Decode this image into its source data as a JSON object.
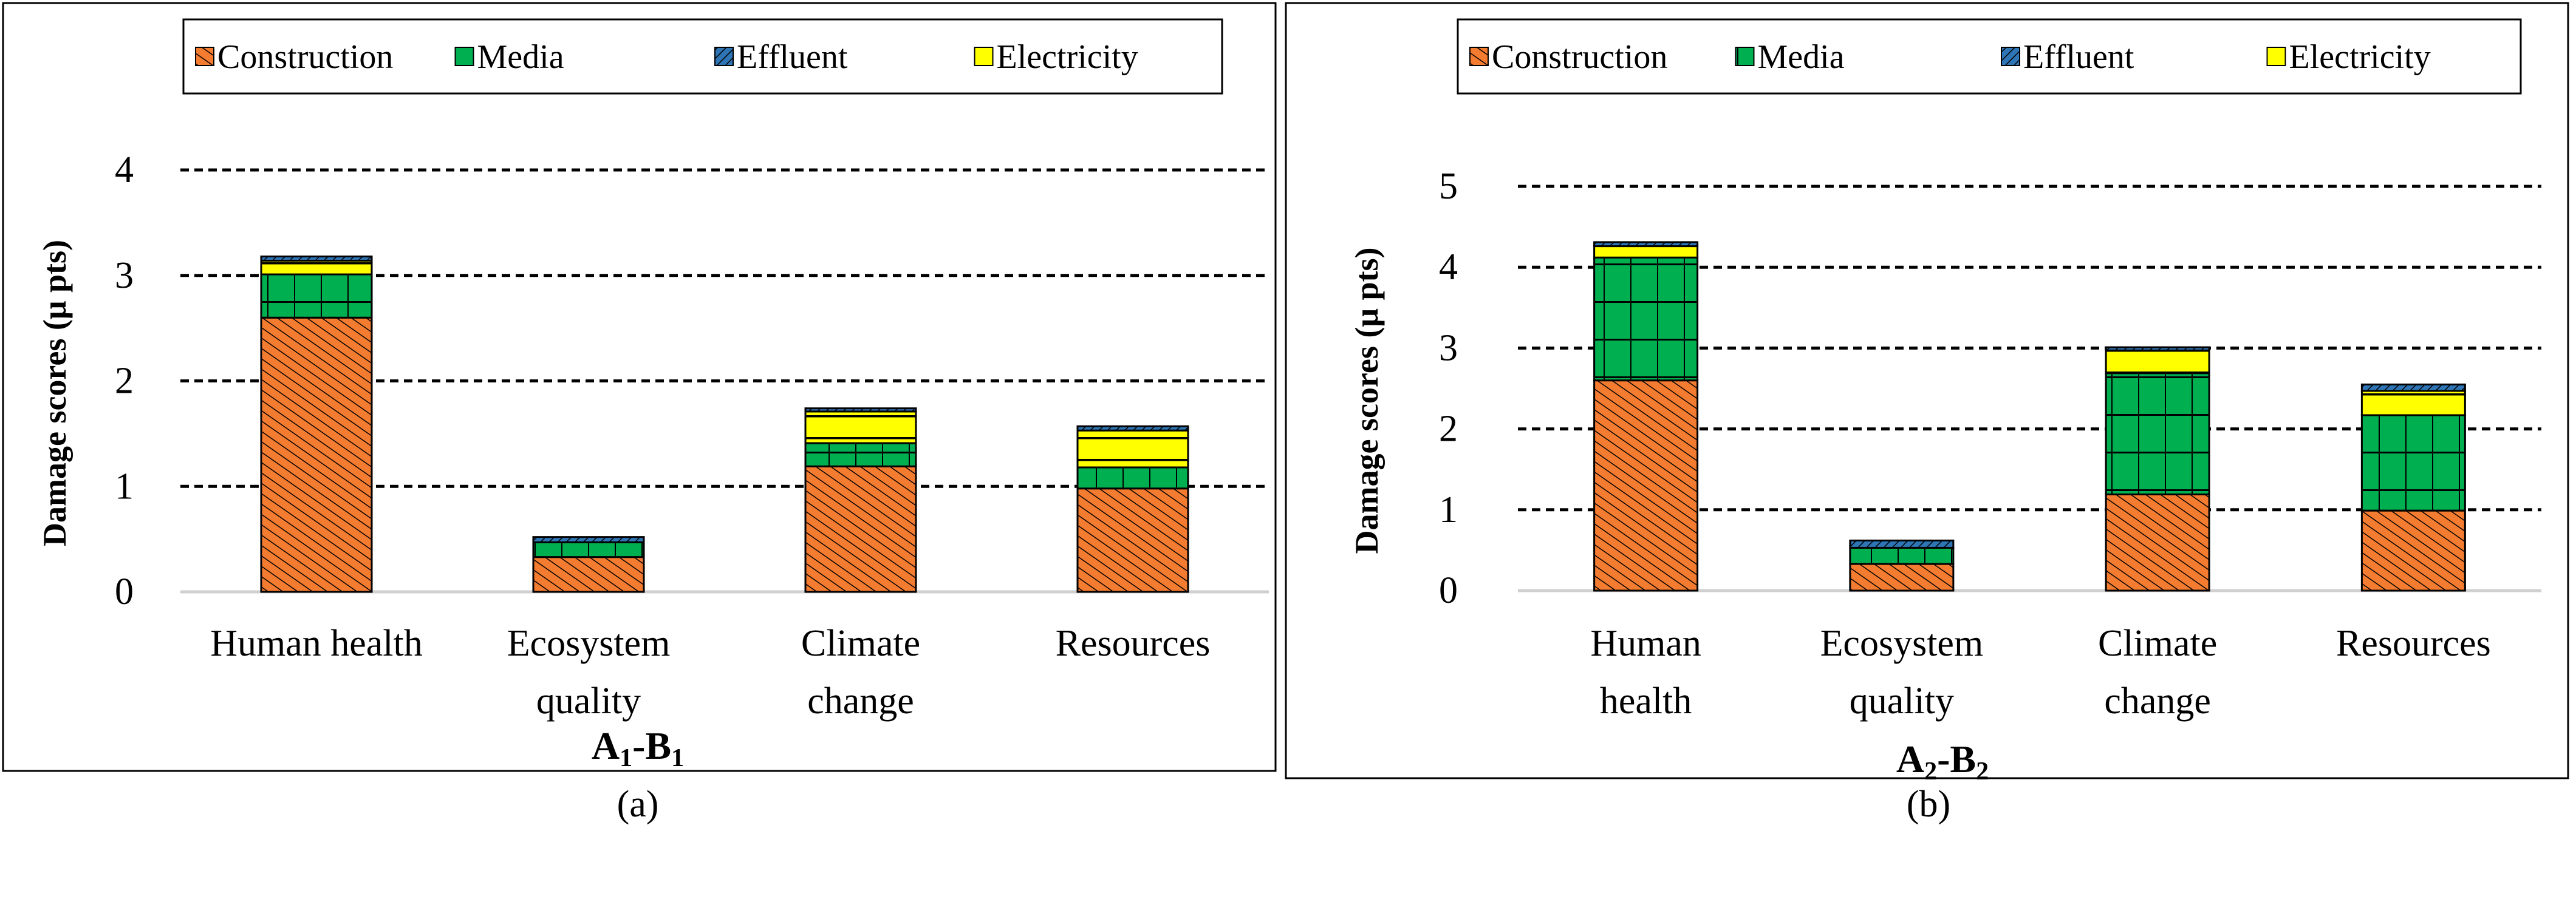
{
  "legend": [
    "Construction",
    "Media",
    "Effluent",
    "Electricity"
  ],
  "colors": {
    "Construction": "#f47c30",
    "Media": "#00b050",
    "Effluent": "#2e75b6",
    "Electricity": "#ffff00"
  },
  "captions": [
    "(a)",
    "(b)"
  ],
  "chart_data": [
    {
      "type": "bar",
      "stacked": true,
      "title": "A1-B1",
      "title_main": "A",
      "title_sub1": "1",
      "title_mid": "-B",
      "title_sub2": "1",
      "ylabel": "Damage scores (μ pts)",
      "xlabel": "",
      "ylim": [
        0,
        4
      ],
      "yticks": [
        "0",
        "1",
        "2",
        "3",
        "4"
      ],
      "grid": true,
      "legend_position": "top",
      "categories": [
        [
          "Human health"
        ],
        [
          "Ecosystem",
          "quality"
        ],
        [
          "Climate",
          "change"
        ],
        [
          "Resources"
        ]
      ],
      "series": [
        {
          "name": "Construction",
          "values": [
            2.6,
            0.33,
            1.19,
            0.98
          ]
        },
        {
          "name": "Media",
          "values": [
            0.41,
            0.14,
            0.22,
            0.2
          ]
        },
        {
          "name": "Electricity",
          "values": [
            0.13,
            0.0,
            0.3,
            0.35
          ]
        },
        {
          "name": "Effluent",
          "values": [
            0.04,
            0.05,
            0.03,
            0.04
          ]
        }
      ]
    },
    {
      "type": "bar",
      "stacked": true,
      "title": "A2-B2",
      "title_main": "A",
      "title_sub1": "2",
      "title_mid": "-B",
      "title_sub2": "2",
      "ylabel": "Damage scores (μ pts)",
      "xlabel": "",
      "ylim": [
        0,
        5
      ],
      "yticks": [
        "0",
        "1",
        "2",
        "3",
        "4",
        "5"
      ],
      "grid": true,
      "legend_position": "top",
      "categories": [
        [
          "Human",
          "health"
        ],
        [
          "Ecosystem",
          "quality"
        ],
        [
          "Climate",
          "change"
        ],
        [
          "Resources"
        ]
      ],
      "series": [
        {
          "name": "Construction",
          "values": [
            2.6,
            0.33,
            1.19,
            0.99
          ]
        },
        {
          "name": "Media",
          "values": [
            1.52,
            0.2,
            1.5,
            1.18
          ]
        },
        {
          "name": "Electricity",
          "values": [
            0.14,
            0.0,
            0.28,
            0.3
          ]
        },
        {
          "name": "Effluent",
          "values": [
            0.05,
            0.09,
            0.04,
            0.08
          ]
        }
      ]
    }
  ]
}
